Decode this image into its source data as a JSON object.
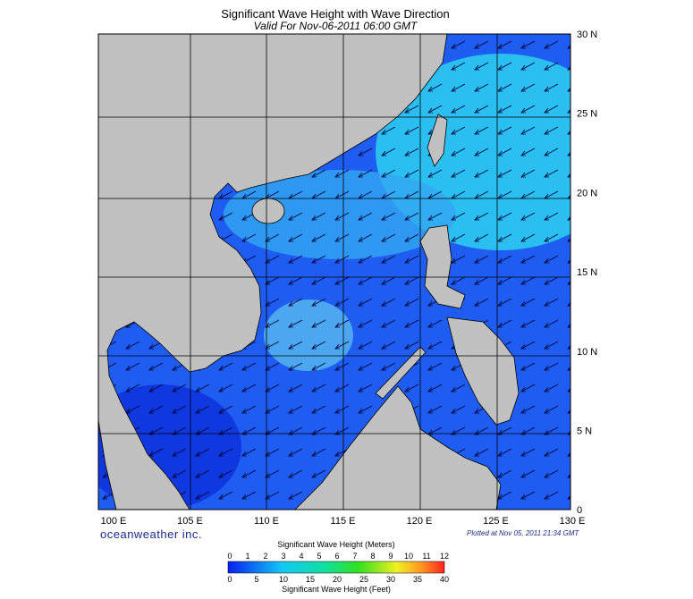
{
  "header": {
    "title": "Significant Wave Height with Wave Direction",
    "subtitle": "Valid For Nov-06-2011 06:00 GMT"
  },
  "map": {
    "lon_labels": [
      "100 E",
      "105 E",
      "110 E",
      "115 E",
      "120 E",
      "125 E",
      "130 E"
    ],
    "lat_labels": [
      "30 N",
      "25 N",
      "20 N",
      "15 N",
      "10 N",
      "5 N",
      "0"
    ]
  },
  "footer": {
    "brand": "oceanweather inc.",
    "plotted": "Plotted at Nov 05, 2011 21:34 GMT"
  },
  "colorbar": {
    "meters_title": "Significant Wave Height (Meters)",
    "meters_ticks": [
      "0",
      "1",
      "2",
      "3",
      "4",
      "5",
      "6",
      "7",
      "8",
      "9",
      "10",
      "11",
      "12"
    ],
    "feet_ticks": [
      "0",
      "5",
      "10",
      "15",
      "20",
      "25",
      "30",
      "35",
      "40"
    ],
    "feet_title": "Significant Wave Height (Feet)"
  }
}
